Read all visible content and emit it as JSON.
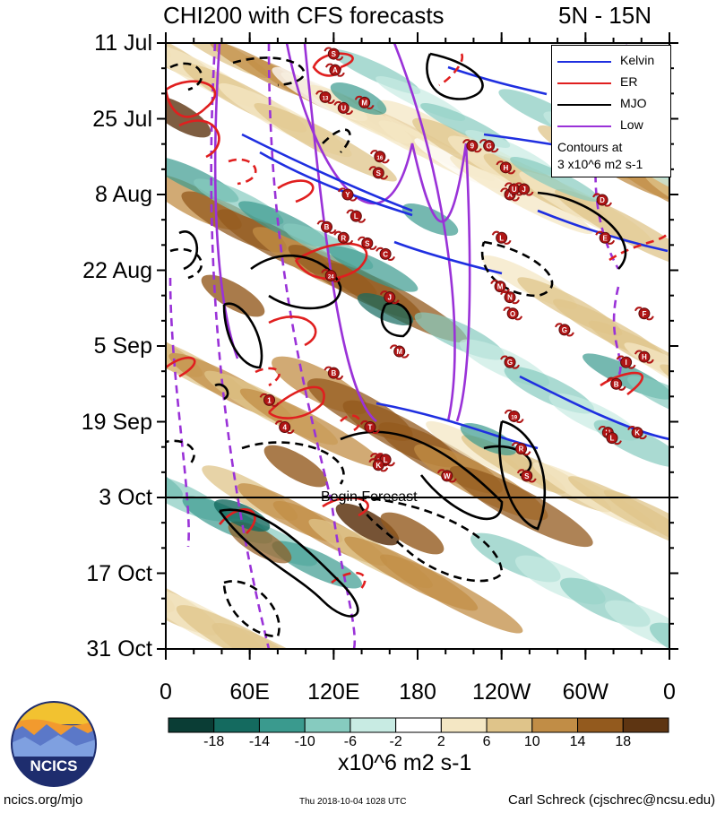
{
  "chart_data": {
    "type": "heatmap",
    "title": "CHI200 with CFS forecasts",
    "region": "5N - 15N",
    "x_ticks": [
      "0",
      "60E",
      "120E",
      "180",
      "120W",
      "60W",
      "0"
    ],
    "y_ticks": [
      "11 Jul",
      "25 Jul",
      "8 Aug",
      "22 Aug",
      "5 Sep",
      "19 Sep",
      "3 Oct",
      "17 Oct",
      "31 Oct"
    ],
    "forecast_start": "3 Oct",
    "forecast_label": "Begin Forecast",
    "colorbar": {
      "labels": [
        "-18",
        "-14",
        "-10",
        "-6",
        "-2",
        "2",
        "6",
        "10",
        "14",
        "18"
      ],
      "colors": [
        "#0a3d35",
        "#146a5f",
        "#3a9a8e",
        "#86cbbf",
        "#c8ebe3",
        "#ffffff",
        "#f4e7c4",
        "#dfc48a",
        "#c18d46",
        "#935a1e",
        "#5e3512"
      ],
      "units": "x10^6 m2 s-1"
    },
    "legend": {
      "items": [
        {
          "name": "Kelvin",
          "color": "#1f2fe0"
        },
        {
          "name": "ER",
          "color": "#e01f1f"
        },
        {
          "name": "MJO",
          "color": "#000000"
        },
        {
          "name": "Low",
          "color": "#9a32d8"
        }
      ],
      "note": [
        "Contours at",
        "3 x10^6 m2 s-1"
      ],
      "position": "top-right"
    },
    "storm_markers": [
      {
        "label": "S",
        "lon": 120,
        "date": "13 Jul"
      },
      {
        "label": "A",
        "lon": 121,
        "date": "16 Jul"
      },
      {
        "label": "13",
        "lon": 114,
        "date": "21 Jul"
      },
      {
        "label": "U",
        "lon": 127,
        "date": "23 Jul"
      },
      {
        "label": "M",
        "lon": 142,
        "date": "22 Jul"
      },
      {
        "label": "9",
        "lon": 219,
        "date": "30 Jul"
      },
      {
        "label": "G",
        "lon": 231,
        "date": "30 Jul"
      },
      {
        "label": "16",
        "lon": 153,
        "date": "1 Aug"
      },
      {
        "label": "H",
        "lon": 243,
        "date": "3 Aug"
      },
      {
        "label": "S",
        "lon": 152,
        "date": "4 Aug"
      },
      {
        "label": "Y",
        "lon": 130,
        "date": "8 Aug"
      },
      {
        "label": "A",
        "lon": 246,
        "date": "8 Aug"
      },
      {
        "label": "U",
        "lon": 249,
        "date": "7 Aug"
      },
      {
        "label": "J",
        "lon": 256,
        "date": "7 Aug"
      },
      {
        "label": "D",
        "lon": 312,
        "date": "9 Aug"
      },
      {
        "label": "L",
        "lon": 136,
        "date": "12 Aug"
      },
      {
        "label": "B",
        "lon": 115,
        "date": "14 Aug"
      },
      {
        "label": "R",
        "lon": 127,
        "date": "16 Aug"
      },
      {
        "label": "S",
        "lon": 144,
        "date": "17 Aug"
      },
      {
        "label": "L",
        "lon": 240,
        "date": "16 Aug"
      },
      {
        "label": "E",
        "lon": 314,
        "date": "16 Aug"
      },
      {
        "label": "C",
        "lon": 157,
        "date": "19 Aug"
      },
      {
        "label": "24",
        "lon": 118,
        "date": "23 Aug"
      },
      {
        "label": "J",
        "lon": 160,
        "date": "27 Aug"
      },
      {
        "label": "M",
        "lon": 239,
        "date": "25 Aug"
      },
      {
        "label": "N",
        "lon": 246,
        "date": "27 Aug"
      },
      {
        "label": "O",
        "lon": 248,
        "date": "30 Aug"
      },
      {
        "label": "F",
        "lon": 342,
        "date": "30 Aug"
      },
      {
        "label": "G",
        "lon": 285,
        "date": "2 Sep"
      },
      {
        "label": "M",
        "lon": 167,
        "date": "6 Sep"
      },
      {
        "label": "B",
        "lon": 120,
        "date": "10 Sep"
      },
      {
        "label": "G",
        "lon": 246,
        "date": "8 Sep"
      },
      {
        "label": "I",
        "lon": 329,
        "date": "8 Sep"
      },
      {
        "label": "H",
        "lon": 342,
        "date": "7 Sep"
      },
      {
        "label": "B",
        "lon": 322,
        "date": "12 Sep"
      },
      {
        "label": "1",
        "lon": 74,
        "date": "15 Sep"
      },
      {
        "label": "19",
        "lon": 249,
        "date": "18 Sep"
      },
      {
        "label": "4",
        "lon": 85,
        "date": "20 Sep"
      },
      {
        "label": "T",
        "lon": 146,
        "date": "20 Sep"
      },
      {
        "label": "H",
        "lon": 316,
        "date": "21 Sep"
      },
      {
        "label": "L",
        "lon": 319,
        "date": "22 Sep"
      },
      {
        "label": "K",
        "lon": 337,
        "date": "21 Sep"
      },
      {
        "label": "R",
        "lon": 254,
        "date": "24 Sep"
      },
      {
        "label": "20",
        "lon": 153,
        "date": "26 Sep"
      },
      {
        "label": "L",
        "lon": 157,
        "date": "26 Sep"
      },
      {
        "label": "K",
        "lon": 152,
        "date": "27 Sep"
      },
      {
        "label": "W",
        "lon": 201,
        "date": "29 Sep"
      },
      {
        "label": "S",
        "lon": 258,
        "date": "29 Sep"
      }
    ]
  },
  "logo": {
    "text": "NCICS"
  },
  "footer": {
    "left": "ncics.org/mjo",
    "middle": "Thu 2018-10-04 1028 UTC",
    "right": "Carl Schreck (cjschrec@ncsu.edu)"
  }
}
